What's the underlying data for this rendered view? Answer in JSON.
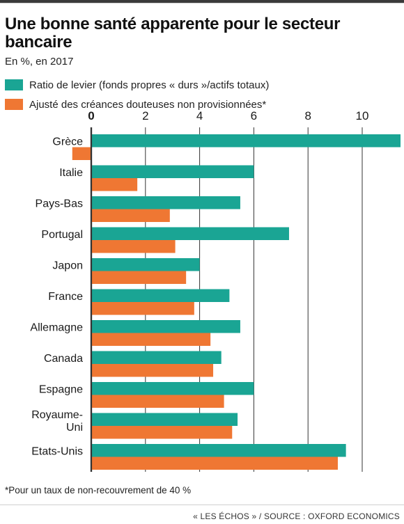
{
  "header": {
    "title": "Une bonne santé apparente pour le secteur bancaire",
    "subtitle": "En %, en 2017"
  },
  "colors": {
    "series1": "#1aa594",
    "series2": "#ef7733",
    "grid": "#333333"
  },
  "chart_data": {
    "type": "bar",
    "orientation": "horizontal",
    "title": "Une bonne santé apparente pour le secteur bancaire",
    "subtitle": "En %, en 2017",
    "categories": [
      "Grèce",
      "Italie",
      "Pays-Bas",
      "Portugal",
      "Japon",
      "France",
      "Allemagne",
      "Canada",
      "Espagne",
      "Royaume-Uni",
      "Etats-Unis"
    ],
    "category_lines": [
      [
        "Grèce"
      ],
      [
        "Italie"
      ],
      [
        "Pays-Bas"
      ],
      [
        "Portugal"
      ],
      [
        "Japon"
      ],
      [
        "France"
      ],
      [
        "Allemagne"
      ],
      [
        "Canada"
      ],
      [
        "Espagne"
      ],
      [
        "Royaume-",
        "Uni"
      ],
      [
        "Etats-Unis"
      ]
    ],
    "series": [
      {
        "name": "Ratio de levier (fonds propres « durs »/actifs totaux)",
        "values": [
          11.5,
          6.0,
          5.5,
          7.3,
          4.0,
          5.1,
          5.5,
          4.8,
          6.0,
          5.4,
          9.4
        ]
      },
      {
        "name": "Ajusté des créances douteuses non provisionnées*",
        "values": [
          -0.7,
          1.7,
          2.9,
          3.1,
          3.5,
          3.8,
          4.4,
          4.5,
          4.9,
          5.2,
          9.1
        ]
      }
    ],
    "xticks": [
      "0",
      "2",
      "4",
      "6",
      "8",
      "10"
    ],
    "xlim": [
      -0.7,
      11.5
    ],
    "grid": true,
    "legend_position": "top-left"
  },
  "legend": {
    "items": [
      {
        "label": "Ratio de levier (fonds propres « durs »/actifs totaux)"
      },
      {
        "label": "Ajusté des créances douteuses non provisionnées*"
      }
    ]
  },
  "footnote": "*Pour un taux de non-recouvrement de 40 %",
  "source": "« LES ÉCHOS » / SOURCE : OXFORD ECONOMICS"
}
